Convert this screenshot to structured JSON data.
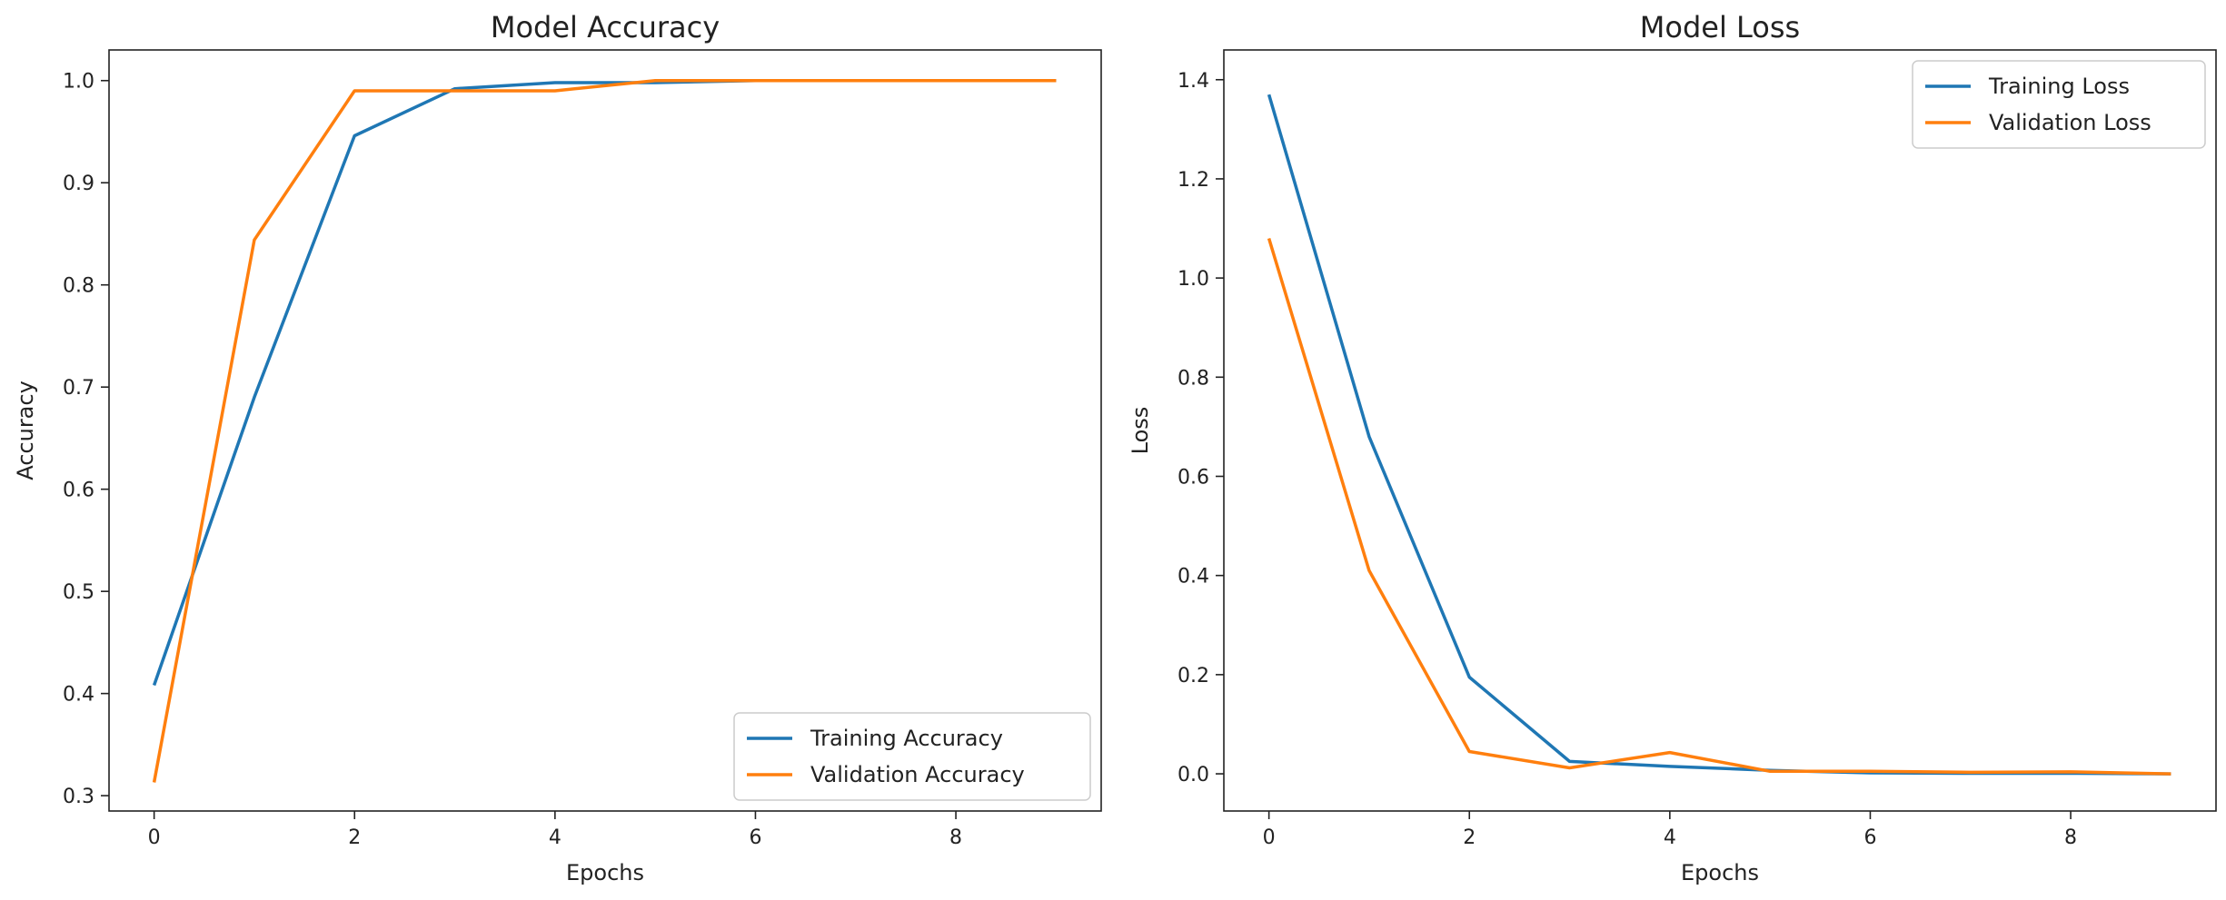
{
  "chart_data": [
    {
      "type": "line",
      "title": "Model Accuracy",
      "xlabel": "Epochs",
      "ylabel": "Accuracy",
      "xlim": [
        -0.45,
        9.45
      ],
      "ylim": [
        0.285,
        1.03
      ],
      "x_ticks": [
        0,
        2,
        4,
        6,
        8
      ],
      "y_ticks": [
        0.3,
        0.4,
        0.5,
        0.6,
        0.7,
        0.8,
        0.9,
        1.0
      ],
      "x_tick_labels": [
        "0",
        "2",
        "4",
        "6",
        "8"
      ],
      "y_tick_labels": [
        "0.3",
        "0.4",
        "0.5",
        "0.6",
        "0.7",
        "0.8",
        "0.9",
        "1.0"
      ],
      "grid": false,
      "legend_position": "lower-right",
      "x": [
        0,
        1,
        2,
        3,
        4,
        5,
        6,
        7,
        8,
        9
      ],
      "series": [
        {
          "name": "Training Accuracy",
          "color": "#1f77b4",
          "values": [
            0.408,
            0.69,
            0.946,
            0.992,
            0.998,
            0.998,
            1.0,
            1.0,
            1.0,
            1.0
          ]
        },
        {
          "name": "Validation Accuracy",
          "color": "#ff7f0e",
          "values": [
            0.313,
            0.844,
            0.99,
            0.99,
            0.99,
            1.0,
            1.0,
            1.0,
            1.0,
            1.0
          ]
        }
      ]
    },
    {
      "type": "line",
      "title": "Model Loss",
      "xlabel": "Epochs",
      "ylabel": "Loss",
      "xlim": [
        -0.45,
        9.45
      ],
      "ylim": [
        -0.075,
        1.46
      ],
      "x_ticks": [
        0,
        2,
        4,
        6,
        8
      ],
      "y_ticks": [
        0.0,
        0.2,
        0.4,
        0.6,
        0.8,
        1.0,
        1.2,
        1.4
      ],
      "x_tick_labels": [
        "0",
        "2",
        "4",
        "6",
        "8"
      ],
      "y_tick_labels": [
        "0.0",
        "0.2",
        "0.4",
        "0.6",
        "0.8",
        "1.0",
        "1.2",
        "1.4"
      ],
      "grid": false,
      "legend_position": "upper-right",
      "x": [
        0,
        1,
        2,
        3,
        4,
        5,
        6,
        7,
        8,
        9
      ],
      "series": [
        {
          "name": "Training Loss",
          "color": "#1f77b4",
          "values": [
            1.37,
            0.68,
            0.195,
            0.025,
            0.015,
            0.007,
            0.002,
            0.001,
            0.001,
            0.0
          ]
        },
        {
          "name": "Validation Loss",
          "color": "#ff7f0e",
          "values": [
            1.08,
            0.41,
            0.045,
            0.012,
            0.043,
            0.005,
            0.005,
            0.003,
            0.004,
            0.0
          ]
        }
      ]
    }
  ]
}
